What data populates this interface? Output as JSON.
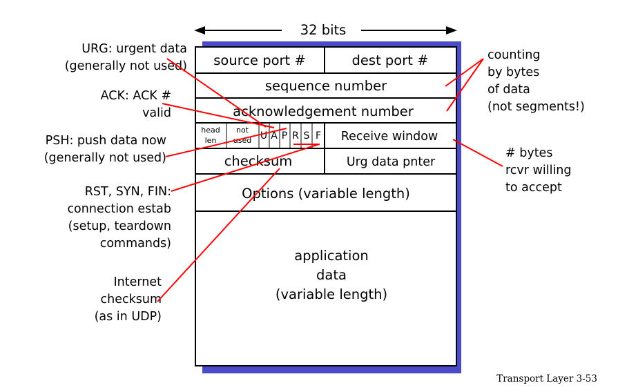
{
  "colors": {
    "background": "#ffffff",
    "shadow": "#4b4bc8",
    "box_border": "#000000",
    "callout_line": "#ff0000",
    "text": "#000000"
  },
  "width_label": "32 bits",
  "fields": {
    "source_port": "source port #",
    "dest_port": "dest port #",
    "sequence_number": "sequence number",
    "ack_number": "acknowledgement number",
    "head_len": [
      "head",
      "len"
    ],
    "not_used": [
      "not",
      "used"
    ],
    "flags": [
      "U",
      "A",
      "P",
      "R",
      "S",
      "F"
    ],
    "receive_window": "Receive window",
    "checksum": "checksum",
    "urg_pointer": "Urg data pnter",
    "options": "Options (variable length)",
    "app_data": [
      "application",
      "data",
      "(variable length)"
    ]
  },
  "annotations": {
    "urg": [
      "URG: urgent data",
      "(generally not used)"
    ],
    "ack": [
      "ACK: ACK #",
      "valid"
    ],
    "psh": [
      "PSH: push data now",
      "(generally not used)"
    ],
    "rst": [
      "RST, SYN, FIN:",
      "connection estab",
      "(setup, teardown",
      "commands)"
    ],
    "checksum": [
      "Internet",
      "checksum",
      "(as in UDP)"
    ],
    "counting": [
      "counting",
      "by bytes",
      "of data",
      "(not segments!)"
    ],
    "rcvr": [
      "# bytes",
      "rcvr willing",
      "to accept"
    ]
  },
  "footer": "Transport Layer   3-53"
}
